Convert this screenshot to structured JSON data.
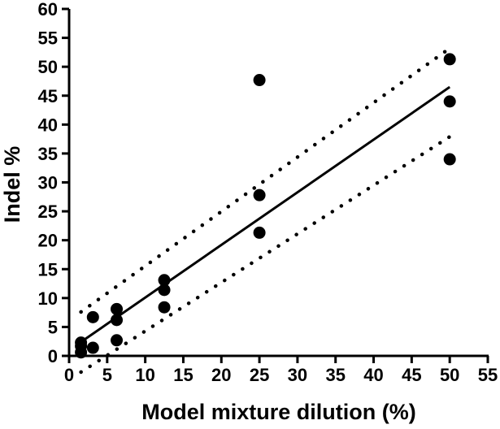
{
  "chart_data": {
    "type": "scatter",
    "xlabel": "Model mixture dilution (%)",
    "ylabel": "Indel %",
    "xlim": [
      0,
      55
    ],
    "ylim": [
      0,
      60
    ],
    "x_ticks": [
      0,
      5,
      10,
      15,
      20,
      25,
      30,
      35,
      40,
      45,
      50,
      55
    ],
    "y_ticks": [
      0,
      5,
      10,
      15,
      20,
      25,
      30,
      35,
      40,
      45,
      50,
      55,
      60
    ],
    "grid": false,
    "points": [
      {
        "x": 1.56,
        "y": 0.6
      },
      {
        "x": 1.56,
        "y": 1.7
      },
      {
        "x": 1.56,
        "y": 2.3
      },
      {
        "x": 3.13,
        "y": 1.4
      },
      {
        "x": 3.13,
        "y": 6.7
      },
      {
        "x": 6.25,
        "y": 2.7
      },
      {
        "x": 6.25,
        "y": 6.2
      },
      {
        "x": 6.25,
        "y": 8.1
      },
      {
        "x": 12.5,
        "y": 8.4
      },
      {
        "x": 12.5,
        "y": 11.4
      },
      {
        "x": 12.5,
        "y": 13.1
      },
      {
        "x": 25,
        "y": 21.3
      },
      {
        "x": 25,
        "y": 27.8
      },
      {
        "x": 25,
        "y": 47.7
      },
      {
        "x": 50,
        "y": 34
      },
      {
        "x": 50,
        "y": 44
      },
      {
        "x": 50,
        "y": 51.3
      }
    ],
    "fit_line": {
      "style": "solid",
      "x": [
        1.56,
        50
      ],
      "y": [
        2.4,
        46.5
      ]
    },
    "confidence_bands": [
      {
        "style": "dotted",
        "x": [
          1.56,
          50
        ],
        "y": [
          7.6,
          53.2
        ]
      },
      {
        "style": "dotted",
        "x": [
          1.56,
          50
        ],
        "y": [
          -2.8,
          37.9
        ]
      }
    ]
  }
}
